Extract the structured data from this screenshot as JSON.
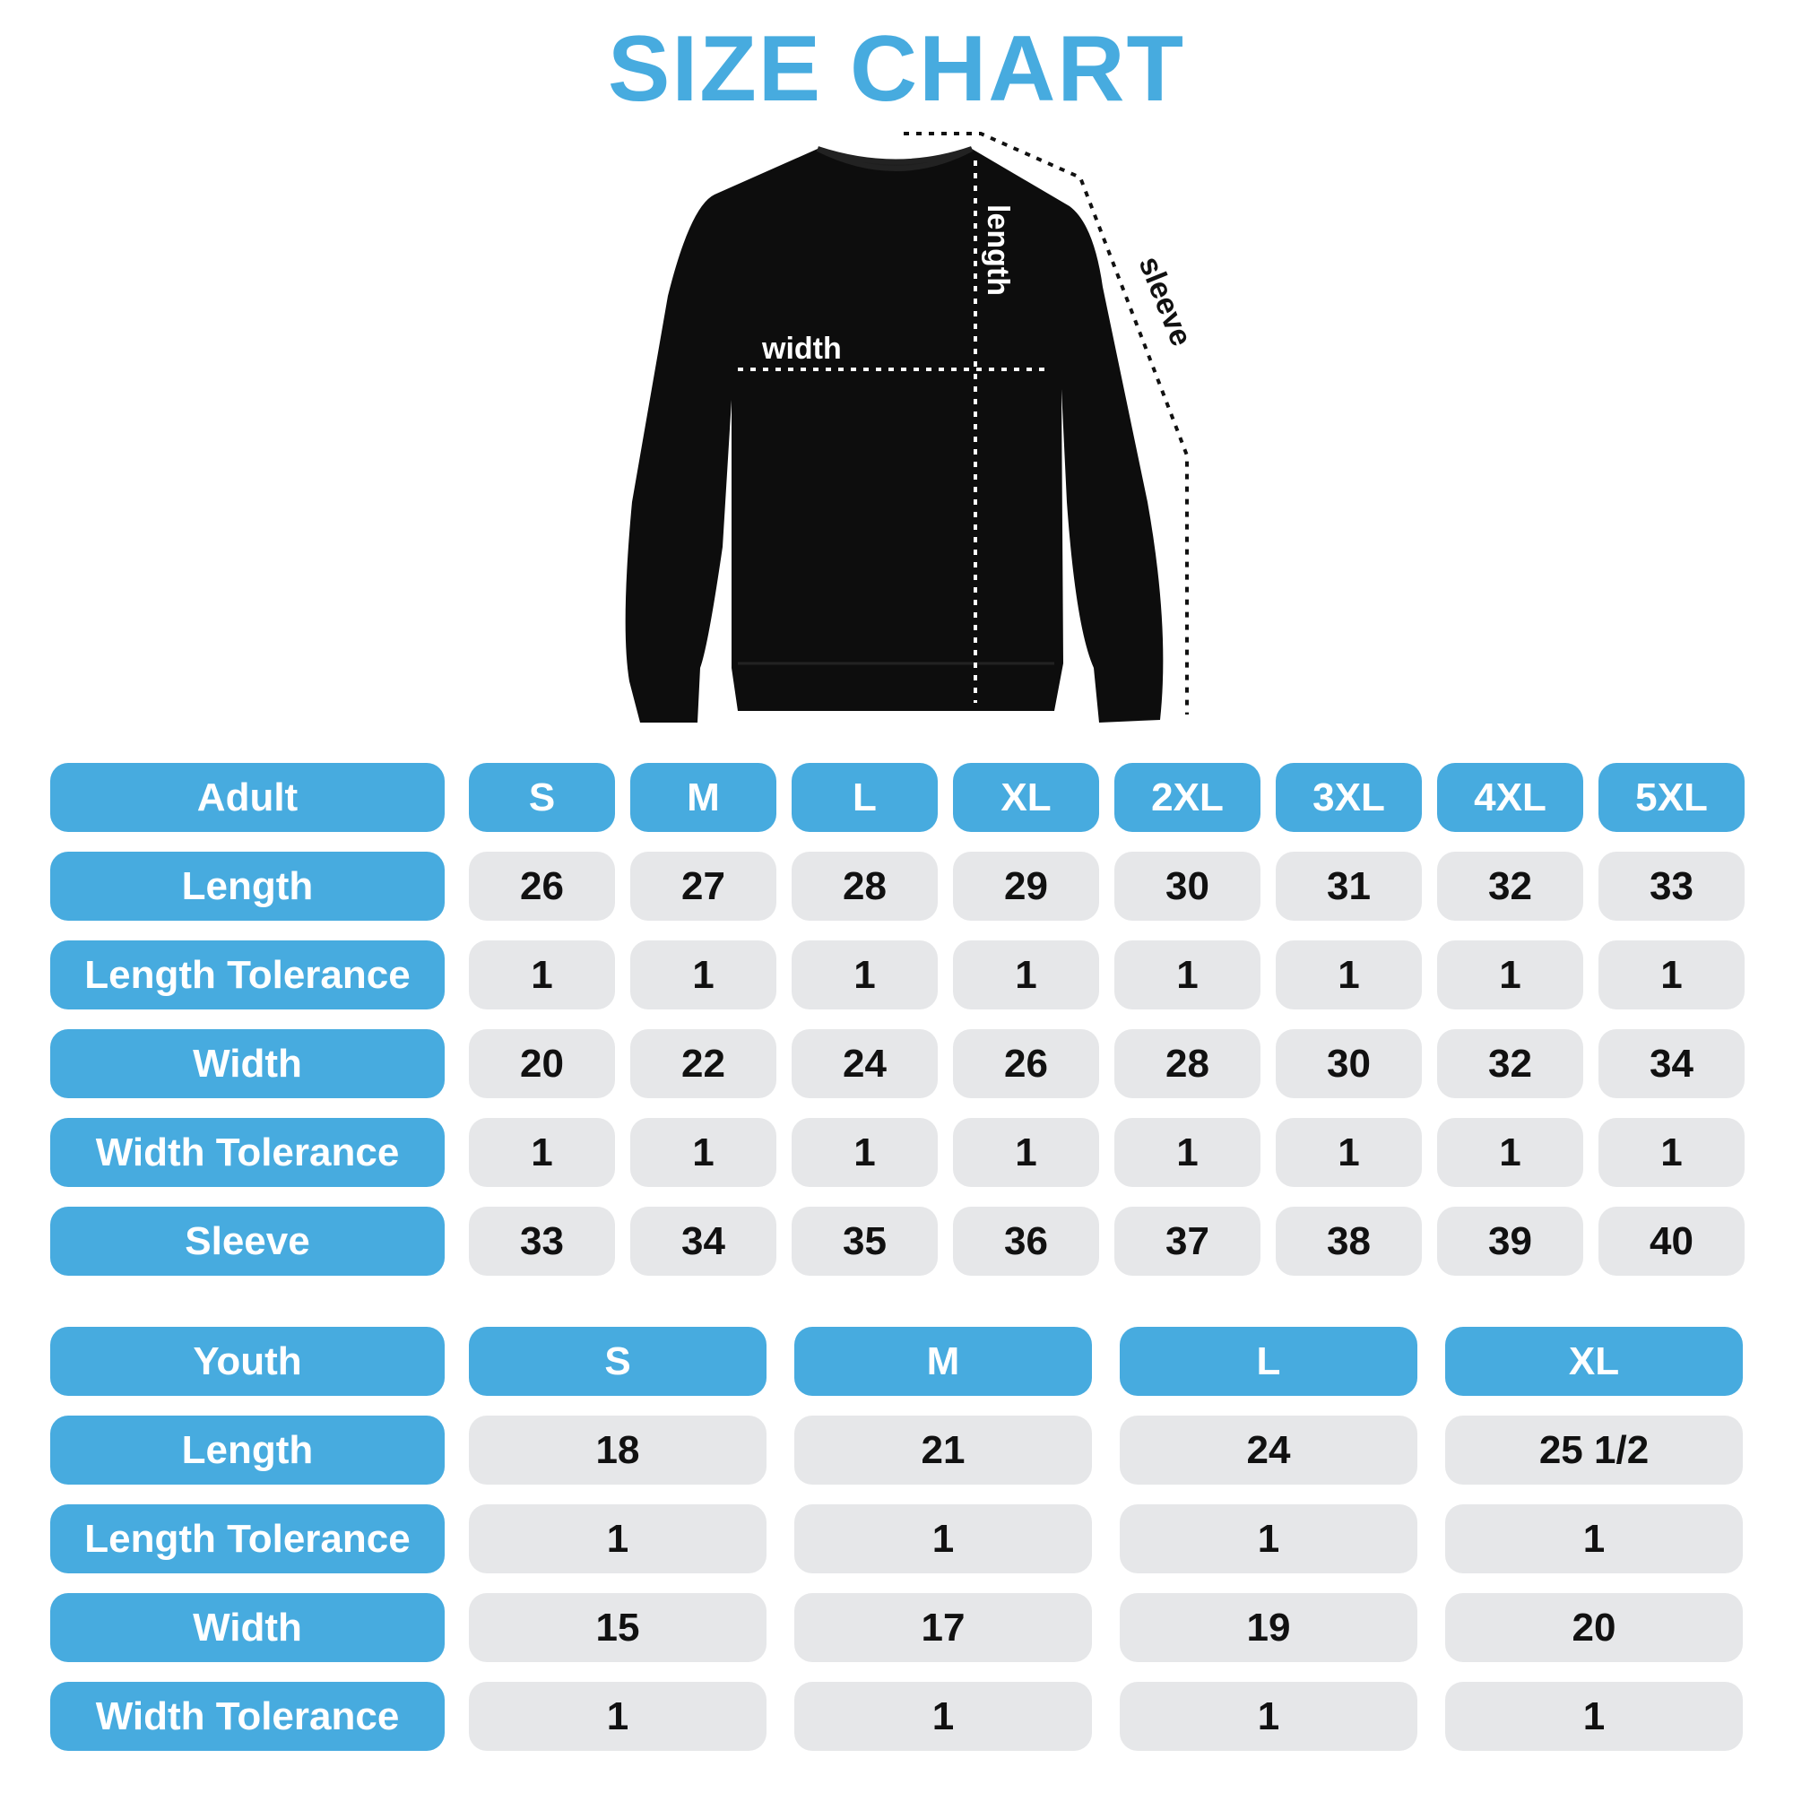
{
  "title": "SIZE CHART",
  "colors": {
    "accent": "#47abdf",
    "cell": "#e6e7e9",
    "text": "#111111"
  },
  "diagram": {
    "width_label": "width",
    "length_label": "length",
    "sleeve_label": "sleeve"
  },
  "adult": {
    "header": "Adult",
    "sizes": [
      "S",
      "M",
      "L",
      "XL",
      "2XL",
      "3XL",
      "4XL",
      "5XL"
    ],
    "rows": [
      {
        "label": "Length",
        "values": [
          "26",
          "27",
          "28",
          "29",
          "30",
          "31",
          "32",
          "33"
        ]
      },
      {
        "label": "Length Tolerance",
        "values": [
          "1",
          "1",
          "1",
          "1",
          "1",
          "1",
          "1",
          "1"
        ]
      },
      {
        "label": "Width",
        "values": [
          "20",
          "22",
          "24",
          "26",
          "28",
          "30",
          "32",
          "34"
        ]
      },
      {
        "label": "Width Tolerance",
        "values": [
          "1",
          "1",
          "1",
          "1",
          "1",
          "1",
          "1",
          "1"
        ]
      },
      {
        "label": "Sleeve",
        "values": [
          "33",
          "34",
          "35",
          "36",
          "37",
          "38",
          "39",
          "40"
        ]
      }
    ]
  },
  "youth": {
    "header": "Youth",
    "sizes": [
      "S",
      "M",
      "L",
      "XL"
    ],
    "rows": [
      {
        "label": "Length",
        "values": [
          "18",
          "21",
          "24",
          "25 1/2"
        ]
      },
      {
        "label": "Length Tolerance",
        "values": [
          "1",
          "1",
          "1",
          "1"
        ]
      },
      {
        "label": "Width",
        "values": [
          "15",
          "17",
          "19",
          "20"
        ]
      },
      {
        "label": "Width Tolerance",
        "values": [
          "1",
          "1",
          "1",
          "1"
        ]
      }
    ]
  }
}
